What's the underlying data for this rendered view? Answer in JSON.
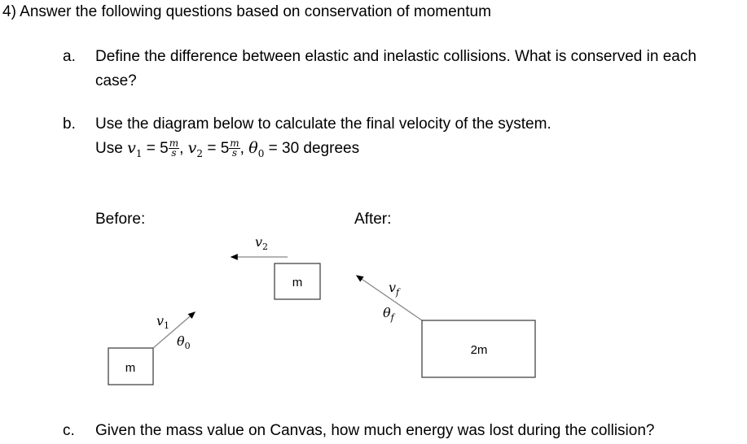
{
  "question": {
    "number": "4)",
    "title": "Answer the following questions based on conservation of momentum"
  },
  "parts": [
    {
      "marker": "a.",
      "line1": "Define the difference between elastic and inelastic collisions. What is conserved in each",
      "line2": "case?"
    },
    {
      "marker": "b.",
      "line1": "Use the diagram below to calculate the final velocity of the system.",
      "use_prefix": "Use",
      "v1": "v",
      "v1_sub": "1",
      "v2": "v",
      "v2_sub": "2",
      "theta0": "θ",
      "theta0_sub": "0",
      "equals": "=",
      "speed": "5",
      "unit_num": "m",
      "unit_den": "s",
      "angle": "30 degrees"
    },
    {
      "marker": "c.",
      "line1": "Given the mass value on Canvas, how much energy was lost during the collision?"
    }
  ],
  "diagram": {
    "before_label": "Before:",
    "after_label": "After:",
    "mass1": "m",
    "mass2": "m",
    "combined_mass": "2m",
    "v1_label": "v₁",
    "theta0_label": "θ₀",
    "v2_label": "v₂",
    "vf_label": "v_f",
    "thetaf_label": "θ_f",
    "vf_text": "v",
    "thetaf_text": "θ",
    "f_sub": "f",
    "v1_text": "v",
    "v1_sub": "1",
    "theta0_text": "θ",
    "theta0_sub": "0",
    "v2_text": "v",
    "v2_sub": "2"
  }
}
